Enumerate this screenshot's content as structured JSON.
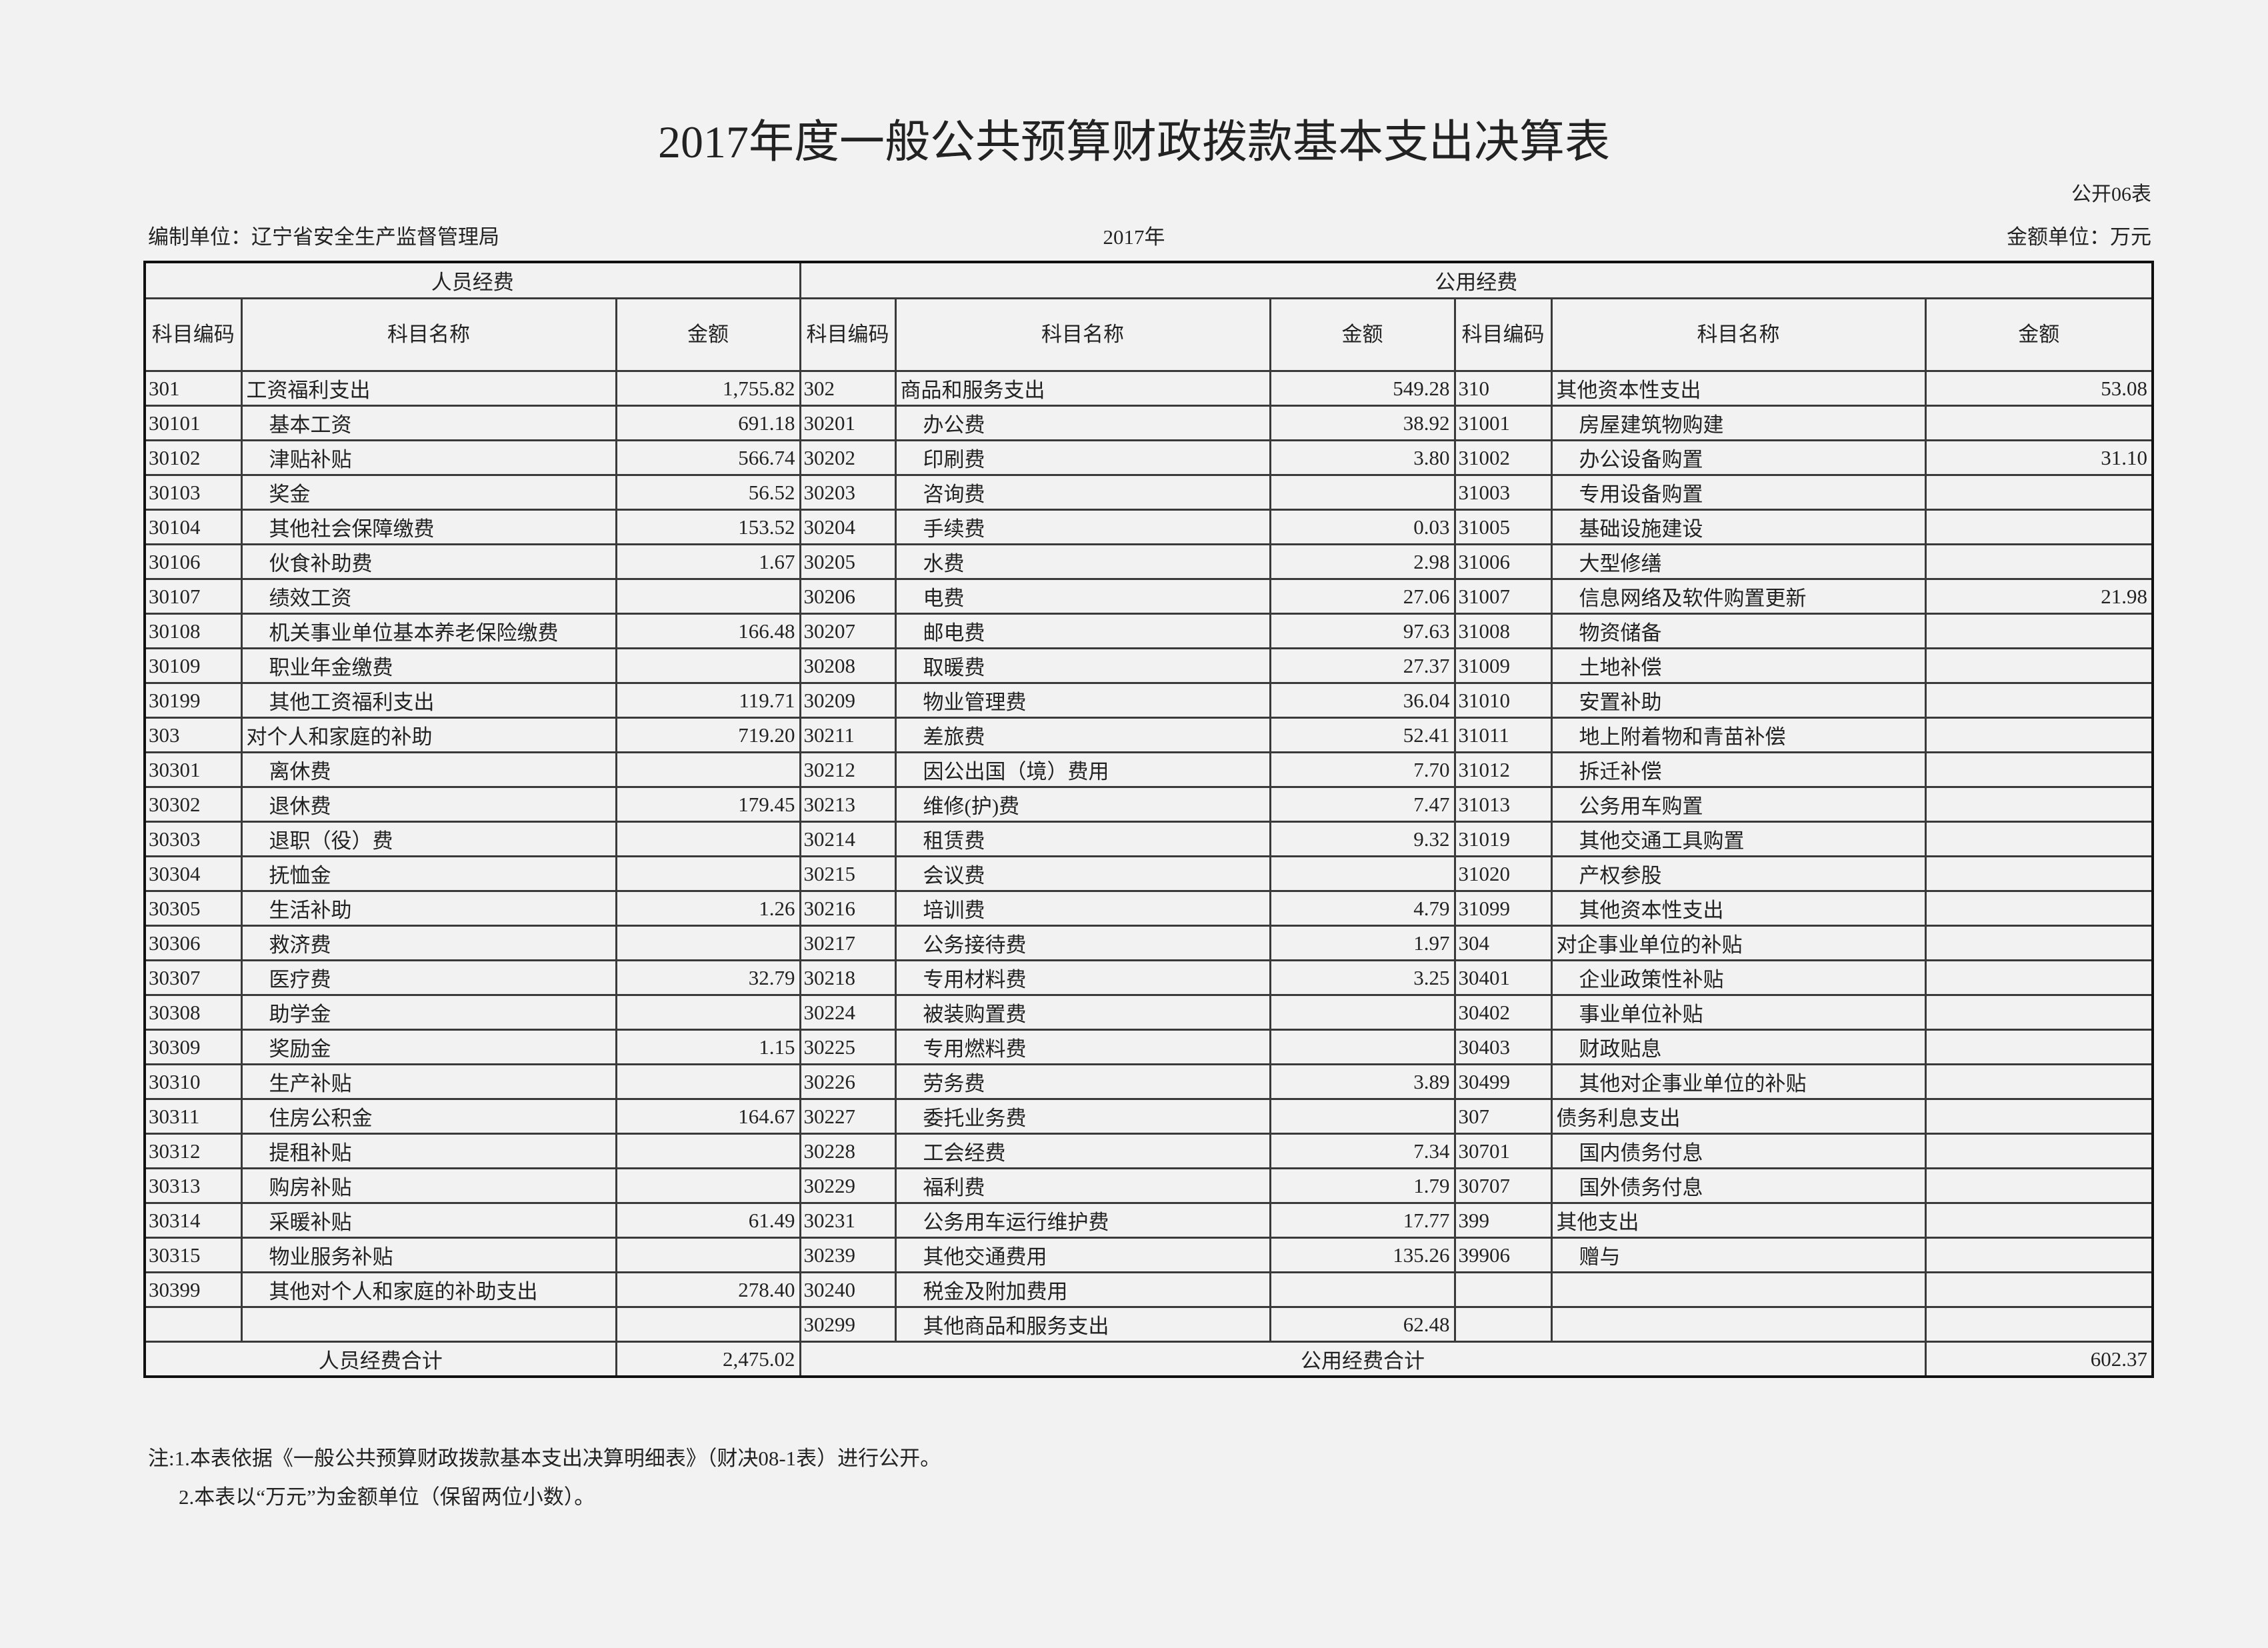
{
  "title": "2017年度一般公共预算财政拨款基本支出决算表",
  "form_no": "公开06表",
  "unit_label": "编制单位：辽宁省安全生产监督管理局",
  "year": "2017年",
  "money_unit": "金额单位：万元",
  "groups": {
    "personnel": "人员经费",
    "public": "公用经费"
  },
  "headers": {
    "code": "科目编码",
    "name": "科目名称",
    "amount": "金额"
  },
  "rows": [
    [
      {
        "code": "301",
        "name": "工资福利支出",
        "amount": "1,755.82"
      },
      {
        "code": "302",
        "name": "商品和服务支出",
        "amount": "549.28"
      },
      {
        "code": "310",
        "name": "其他资本性支出",
        "amount": "53.08"
      }
    ],
    [
      {
        "code": "30101",
        "name": "基本工资",
        "amount": "691.18"
      },
      {
        "code": "30201",
        "name": "办公费",
        "amount": "38.92"
      },
      {
        "code": "31001",
        "name": "房屋建筑物购建",
        "amount": ""
      }
    ],
    [
      {
        "code": "30102",
        "name": "津贴补贴",
        "amount": "566.74"
      },
      {
        "code": "30202",
        "name": "印刷费",
        "amount": "3.80"
      },
      {
        "code": "31002",
        "name": "办公设备购置",
        "amount": "31.10"
      }
    ],
    [
      {
        "code": "30103",
        "name": "奖金",
        "amount": "56.52"
      },
      {
        "code": "30203",
        "name": "咨询费",
        "amount": ""
      },
      {
        "code": "31003",
        "name": "专用设备购置",
        "amount": ""
      }
    ],
    [
      {
        "code": "30104",
        "name": "其他社会保障缴费",
        "amount": "153.52"
      },
      {
        "code": "30204",
        "name": "手续费",
        "amount": "0.03"
      },
      {
        "code": "31005",
        "name": "基础设施建设",
        "amount": ""
      }
    ],
    [
      {
        "code": "30106",
        "name": "伙食补助费",
        "amount": "1.67"
      },
      {
        "code": "30205",
        "name": "水费",
        "amount": "2.98"
      },
      {
        "code": "31006",
        "name": "大型修缮",
        "amount": ""
      }
    ],
    [
      {
        "code": "30107",
        "name": "绩效工资",
        "amount": ""
      },
      {
        "code": "30206",
        "name": "电费",
        "amount": "27.06"
      },
      {
        "code": "31007",
        "name": "信息网络及软件购置更新",
        "amount": "21.98"
      }
    ],
    [
      {
        "code": "30108",
        "name": "机关事业单位基本养老保险缴费",
        "amount": "166.48"
      },
      {
        "code": "30207",
        "name": "邮电费",
        "amount": "97.63"
      },
      {
        "code": "31008",
        "name": "物资储备",
        "amount": ""
      }
    ],
    [
      {
        "code": "30109",
        "name": "职业年金缴费",
        "amount": ""
      },
      {
        "code": "30208",
        "name": "取暖费",
        "amount": "27.37"
      },
      {
        "code": "31009",
        "name": "土地补偿",
        "amount": ""
      }
    ],
    [
      {
        "code": "30199",
        "name": "其他工资福利支出",
        "amount": "119.71"
      },
      {
        "code": "30209",
        "name": "物业管理费",
        "amount": "36.04"
      },
      {
        "code": "31010",
        "name": "安置补助",
        "amount": ""
      }
    ],
    [
      {
        "code": "303",
        "name": "对个人和家庭的补助",
        "amount": "719.20"
      },
      {
        "code": "30211",
        "name": "差旅费",
        "amount": "52.41"
      },
      {
        "code": "31011",
        "name": "地上附着物和青苗补偿",
        "amount": ""
      }
    ],
    [
      {
        "code": "30301",
        "name": "离休费",
        "amount": ""
      },
      {
        "code": "30212",
        "name": "因公出国（境）费用",
        "amount": "7.70"
      },
      {
        "code": "31012",
        "name": "拆迁补偿",
        "amount": ""
      }
    ],
    [
      {
        "code": "30302",
        "name": "退休费",
        "amount": "179.45"
      },
      {
        "code": "30213",
        "name": "维修(护)费",
        "amount": "7.47"
      },
      {
        "code": "31013",
        "name": "公务用车购置",
        "amount": ""
      }
    ],
    [
      {
        "code": "30303",
        "name": "退职（役）费",
        "amount": ""
      },
      {
        "code": "30214",
        "name": "租赁费",
        "amount": "9.32"
      },
      {
        "code": "31019",
        "name": "其他交通工具购置",
        "amount": ""
      }
    ],
    [
      {
        "code": "30304",
        "name": "抚恤金",
        "amount": ""
      },
      {
        "code": "30215",
        "name": "会议费",
        "amount": ""
      },
      {
        "code": "31020",
        "name": "产权参股",
        "amount": ""
      }
    ],
    [
      {
        "code": "30305",
        "name": "生活补助",
        "amount": "1.26"
      },
      {
        "code": "30216",
        "name": "培训费",
        "amount": "4.79"
      },
      {
        "code": "31099",
        "name": "其他资本性支出",
        "amount": ""
      }
    ],
    [
      {
        "code": "30306",
        "name": "救济费",
        "amount": ""
      },
      {
        "code": "30217",
        "name": "公务接待费",
        "amount": "1.97"
      },
      {
        "code": "304",
        "name": "对企事业单位的补贴",
        "amount": ""
      }
    ],
    [
      {
        "code": "30307",
        "name": "医疗费",
        "amount": "32.79"
      },
      {
        "code": "30218",
        "name": "专用材料费",
        "amount": "3.25"
      },
      {
        "code": "30401",
        "name": "企业政策性补贴",
        "amount": ""
      }
    ],
    [
      {
        "code": "30308",
        "name": "助学金",
        "amount": ""
      },
      {
        "code": "30224",
        "name": "被装购置费",
        "amount": ""
      },
      {
        "code": "30402",
        "name": "事业单位补贴",
        "amount": ""
      }
    ],
    [
      {
        "code": "30309",
        "name": "奖励金",
        "amount": "1.15"
      },
      {
        "code": "30225",
        "name": "专用燃料费",
        "amount": ""
      },
      {
        "code": "30403",
        "name": "财政贴息",
        "amount": ""
      }
    ],
    [
      {
        "code": "30310",
        "name": "生产补贴",
        "amount": ""
      },
      {
        "code": "30226",
        "name": "劳务费",
        "amount": "3.89"
      },
      {
        "code": "30499",
        "name": "其他对企事业单位的补贴",
        "amount": ""
      }
    ],
    [
      {
        "code": "30311",
        "name": "住房公积金",
        "amount": "164.67"
      },
      {
        "code": "30227",
        "name": "委托业务费",
        "amount": ""
      },
      {
        "code": "307",
        "name": "债务利息支出",
        "amount": ""
      }
    ],
    [
      {
        "code": "30312",
        "name": "提租补贴",
        "amount": ""
      },
      {
        "code": "30228",
        "name": "工会经费",
        "amount": "7.34"
      },
      {
        "code": "30701",
        "name": "国内债务付息",
        "amount": ""
      }
    ],
    [
      {
        "code": "30313",
        "name": "购房补贴",
        "amount": ""
      },
      {
        "code": "30229",
        "name": "福利费",
        "amount": "1.79"
      },
      {
        "code": "30707",
        "name": "国外债务付息",
        "amount": ""
      }
    ],
    [
      {
        "code": "30314",
        "name": "采暖补贴",
        "amount": "61.49"
      },
      {
        "code": "30231",
        "name": "公务用车运行维护费",
        "amount": "17.77"
      },
      {
        "code": "399",
        "name": "其他支出",
        "amount": ""
      }
    ],
    [
      {
        "code": "30315",
        "name": "物业服务补贴",
        "amount": ""
      },
      {
        "code": "30239",
        "name": "其他交通费用",
        "amount": "135.26"
      },
      {
        "code": "39906",
        "name": "赠与",
        "amount": ""
      }
    ],
    [
      {
        "code": "30399",
        "name": "其他对个人和家庭的补助支出",
        "amount": "278.40"
      },
      {
        "code": "30240",
        "name": "税金及附加费用",
        "amount": ""
      },
      {
        "code": "",
        "name": "",
        "amount": ""
      }
    ],
    [
      {
        "code": "",
        "name": "",
        "amount": ""
      },
      {
        "code": "30299",
        "name": "其他商品和服务支出",
        "amount": "62.48"
      },
      {
        "code": "",
        "name": "",
        "amount": ""
      }
    ]
  ],
  "totals": {
    "personnel_label": "人员经费合计",
    "personnel_amount": "2,475.02",
    "public_label": "公用经费合计",
    "public_amount": "602.37"
  },
  "notes": [
    "注:1.本表依据《一般公共预算财政拨款基本支出决算明细表》（财决08-1表）进行公开。",
    "2.本表以“万元”为金额单位（保留两位小数）。"
  ]
}
